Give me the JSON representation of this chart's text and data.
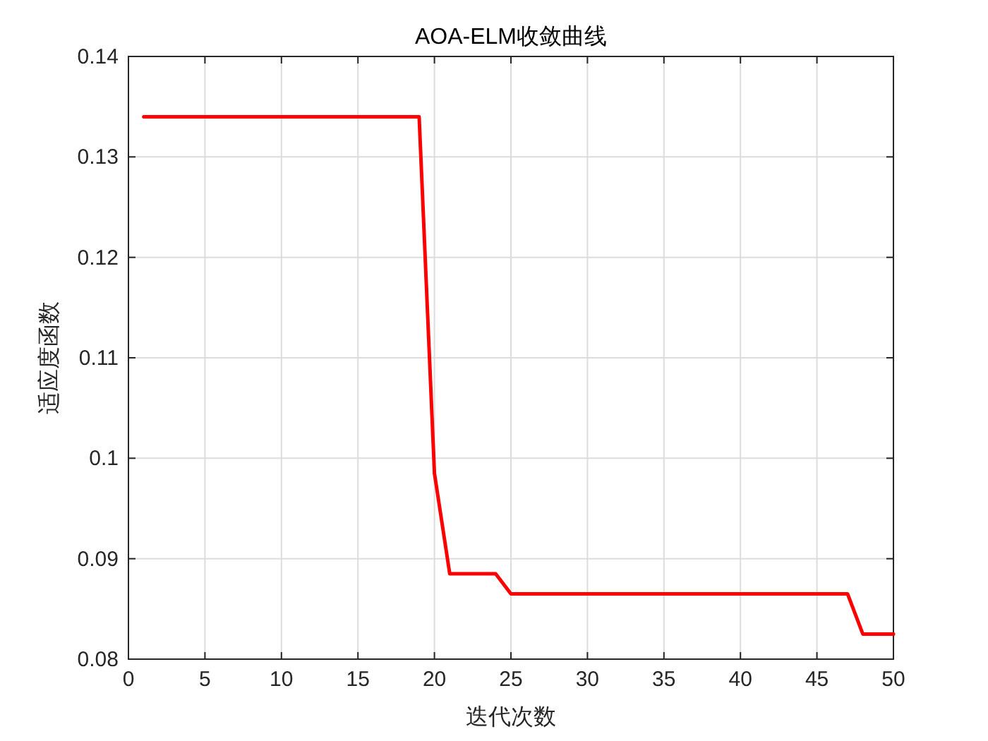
{
  "chart_data": {
    "type": "line",
    "title": "AOA-ELM收敛曲线",
    "xlabel": "迭代次数",
    "ylabel": "适应度函数",
    "x": [
      1,
      2,
      3,
      4,
      5,
      6,
      7,
      8,
      9,
      10,
      11,
      12,
      13,
      14,
      15,
      16,
      17,
      18,
      19,
      20,
      21,
      22,
      23,
      24,
      25,
      26,
      27,
      28,
      29,
      30,
      31,
      32,
      33,
      34,
      35,
      36,
      37,
      38,
      39,
      40,
      41,
      42,
      43,
      44,
      45,
      46,
      47,
      48,
      49,
      50
    ],
    "series": [
      {
        "color": "#ff0000",
        "values": [
          0.134,
          0.134,
          0.134,
          0.134,
          0.134,
          0.134,
          0.134,
          0.134,
          0.134,
          0.134,
          0.134,
          0.134,
          0.134,
          0.134,
          0.134,
          0.134,
          0.134,
          0.134,
          0.134,
          0.0985,
          0.0885,
          0.0885,
          0.0885,
          0.0885,
          0.0865,
          0.0865,
          0.0865,
          0.0865,
          0.0865,
          0.0865,
          0.0865,
          0.0865,
          0.0865,
          0.0865,
          0.0865,
          0.0865,
          0.0865,
          0.0865,
          0.0865,
          0.0865,
          0.0865,
          0.0865,
          0.0865,
          0.0865,
          0.0865,
          0.0865,
          0.0865,
          0.0825,
          0.0825,
          0.0825
        ]
      }
    ],
    "xlim": [
      0,
      50
    ],
    "xticks": [
      0,
      5,
      10,
      15,
      20,
      25,
      30,
      35,
      40,
      45,
      50
    ],
    "ylim": [
      0.08,
      0.14
    ],
    "yticks": [
      0.08,
      0.09,
      0.1,
      0.11,
      0.12,
      0.13,
      0.14
    ],
    "grid": true,
    "line_style": "solid",
    "marker": "none"
  }
}
